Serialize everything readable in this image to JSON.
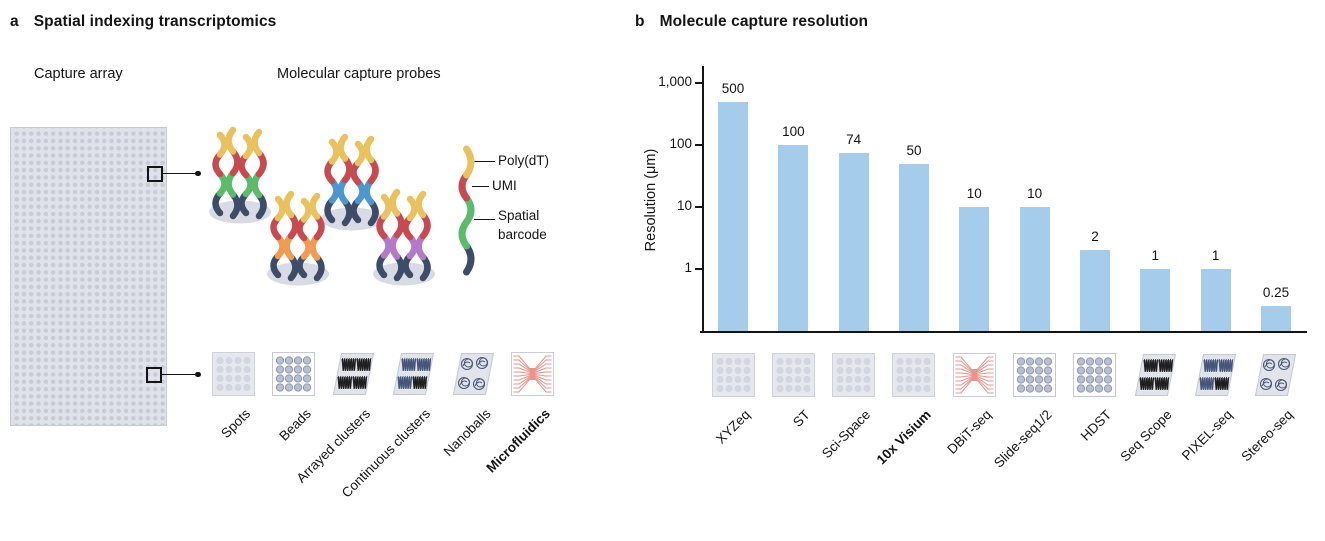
{
  "panel_a": {
    "label": "a",
    "title": "Spatial indexing transcriptomics",
    "capture_array_label": "Capture array",
    "probes_label": "Molecular capture probes",
    "legend": {
      "poly_dt": "Poly(dT)",
      "umi": "UMI",
      "spatial_line1": "Spatial",
      "spatial_line2": "barcode"
    },
    "probe_cluster_colors": [
      "green",
      "blue",
      "orange",
      "purple"
    ],
    "array_types": [
      {
        "label": "Spots",
        "icon": "spots",
        "bold": false
      },
      {
        "label": "Beads",
        "icon": "beads",
        "bold": false
      },
      {
        "label": "Arrayed clusters",
        "icon": "arrayed-clusters",
        "bold": false
      },
      {
        "label": "Continuous clusters",
        "icon": "continuous-clusters",
        "bold": false
      },
      {
        "label": "Nanoballs",
        "icon": "nanoballs",
        "bold": false
      },
      {
        "label": "Microfluidics",
        "icon": "microfluidics",
        "bold": true
      }
    ]
  },
  "panel_b": {
    "label": "b",
    "title": "Molecule capture resolution",
    "ylabel": "Resolution (μm)",
    "yticks": [
      {
        "label": "1,000",
        "value": 1000
      },
      {
        "label": "100",
        "value": 100
      },
      {
        "label": "10",
        "value": 10
      },
      {
        "label": "1",
        "value": 1
      }
    ]
  },
  "chart_data": {
    "type": "bar",
    "title": "Molecule capture resolution",
    "xlabel": "",
    "ylabel": "Resolution (μm)",
    "yscale": "log",
    "ylim": [
      0.1,
      1000
    ],
    "grid": false,
    "categories": [
      "XYZeq",
      "ST",
      "Sci-Space",
      "10x Visium",
      "DBiT-seq",
      "Slide-seq1/2",
      "HDST",
      "Seq Scope",
      "PIXEL-seq",
      "Stereo-seq"
    ],
    "values": [
      500,
      100,
      74,
      50,
      10,
      10,
      2,
      1,
      1,
      0.25
    ],
    "value_labels": [
      "500",
      "100",
      "74",
      "50",
      "10",
      "10",
      "2",
      "1",
      "1",
      "0.25"
    ],
    "icons": [
      "spots",
      "spots",
      "spots",
      "spots",
      "microfluidics",
      "beads",
      "beads",
      "arrayed-clusters",
      "continuous-clusters",
      "nanoballs"
    ],
    "bold_categories": [
      "10x Visium"
    ],
    "bar_color": "#A5CDEB"
  },
  "colors": {
    "bar": "#A5CDEB",
    "yellow": "#E9C25F",
    "red": "#C74A50",
    "green": "#5CBA6B",
    "blue": "#4D96D0",
    "orange": "#F09B53",
    "purple": "#B27AC8",
    "navy": "#3C4C69",
    "ellipse": "#D9DBE4",
    "micro_red": "#E8938C",
    "scribble_black": "#1F1F1F",
    "scribble_navy": "#44557A",
    "ball_navy": "#4A5878"
  }
}
